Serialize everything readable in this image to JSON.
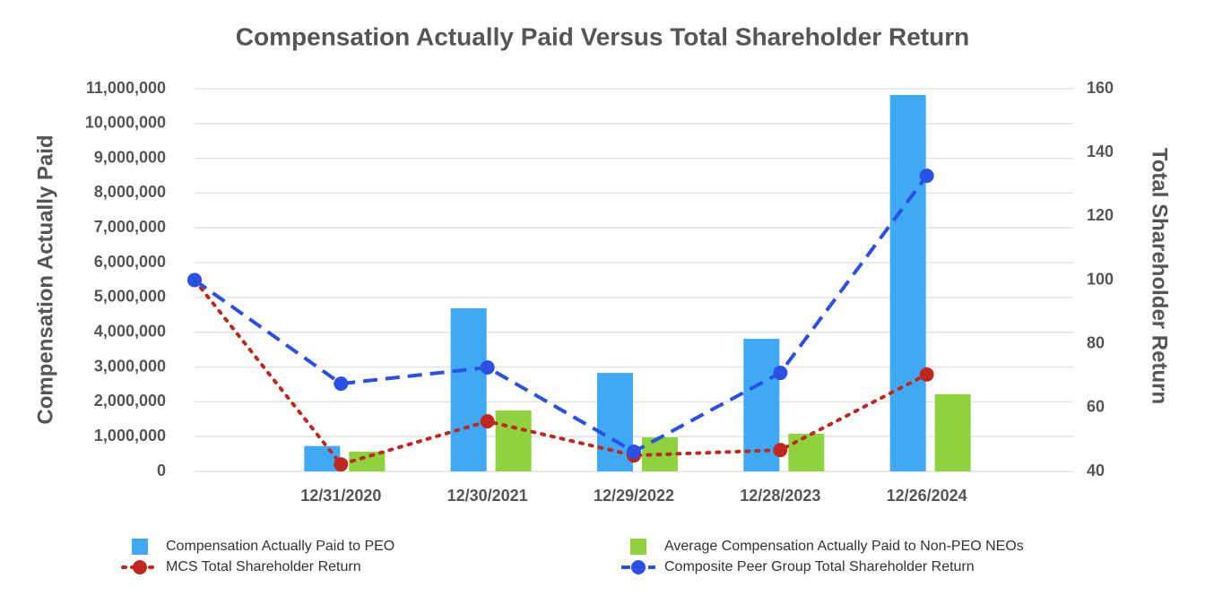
{
  "chart_data": {
    "type": "bar",
    "title": "Compensation Actually Paid Versus Total Shareholder Return",
    "y_label": "Compensation Actually Paid",
    "y2_label": "Total Shareholder Return",
    "categories": [
      null,
      "12/31/2020",
      "12/30/2021",
      "12/29/2022",
      "12/28/2023",
      "12/26/2024"
    ],
    "series": [
      {
        "name": "Compensation Actually Paid to PEO",
        "type": "bar",
        "color": "#3fa9f5",
        "values": [
          null,
          730000,
          4690000,
          2830000,
          3810000,
          10820000
        ]
      },
      {
        "name": "Average Compensation Actually Paid to Non-PEO NEOs",
        "type": "bar",
        "color": "#8ed23e",
        "values": [
          null,
          570000,
          1750000,
          980000,
          1080000,
          2220000
        ]
      },
      {
        "name": "MCS Total Shareholder Return",
        "type": "line",
        "style": "dotted",
        "axis": "y2",
        "color": "#c0271f",
        "values": [
          100,
          42.2,
          55.7,
          45,
          46.7,
          70.4
        ]
      },
      {
        "name": "Composite Peer Group Total Shareholder Return",
        "type": "line",
        "style": "dashed",
        "axis": "y2",
        "color": "#2b50e6",
        "values": [
          100,
          67.5,
          72.6,
          46.2,
          70.9,
          132.7
        ]
      }
    ],
    "ylim": [
      0,
      11000000
    ],
    "yticks": [
      0,
      {
        "value": 1000000,
        "label": "1,000,000"
      },
      {
        "value": 2000000,
        "label": "2,000,000"
      },
      {
        "value": 3000000,
        "label": "3,000,000"
      },
      {
        "value": 4000000,
        "label": "4,000,000"
      },
      {
        "value": 5000000,
        "label": "5,000,000"
      },
      {
        "value": 6000000,
        "label": "6,000,000"
      },
      {
        "value": 7000000,
        "label": "7,000,000"
      },
      {
        "value": 8000000,
        "label": "8,000,000"
      },
      {
        "value": 9000000,
        "label": "9,000,000"
      },
      {
        "value": 10000000,
        "label": "10,000,000"
      },
      {
        "value": 11000000,
        "label": "11,000,000"
      }
    ],
    "y2lim": [
      40,
      160
    ],
    "y2ticks": [
      40,
      60,
      80,
      100,
      120,
      140,
      160
    ],
    "grid": true,
    "legend": "bottom"
  }
}
